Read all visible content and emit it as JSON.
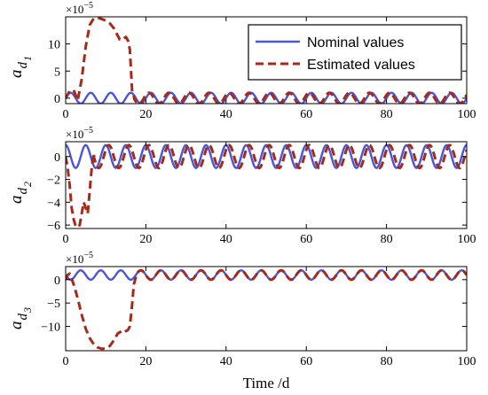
{
  "chart_data": [
    {
      "type": "line",
      "ylabel": {
        "main": "a",
        "sub": "d",
        "subsub": "1"
      },
      "exponent": "×10",
      "exponent_power": "−5",
      "xlim": [
        0,
        100
      ],
      "ylim": [
        -1,
        15
      ],
      "xticks": [
        "0",
        "20",
        "40",
        "60",
        "80",
        "100"
      ],
      "yticks": [
        {
          "value": 0,
          "label": "0"
        },
        {
          "value": 5,
          "label": "5"
        },
        {
          "value": 10,
          "label": "10"
        }
      ],
      "legend": {
        "placement": "top-right",
        "items": [
          "Nominal values",
          "Estimated values"
        ]
      },
      "series": [
        {
          "name": "Nominal values",
          "color": "#4a55d8",
          "style": "solid",
          "model": {
            "amplitude": 1,
            "offset": 0,
            "period": 5,
            "phase_deg": 0,
            "x_start": 0
          }
        },
        {
          "name": "Estimated values",
          "color": "#a52a1a",
          "style": "dashed",
          "x": [
            0,
            1,
            2,
            3,
            4,
            5,
            6,
            7,
            8,
            9,
            10,
            11,
            12,
            13,
            13.5,
            14,
            14.5,
            15,
            15.5,
            16,
            16.3,
            16.6,
            17
          ],
          "y": [
            0,
            1.3,
            1.5,
            -0.4,
            3.5,
            9.5,
            13.5,
            14.7,
            14.8,
            14.6,
            14.3,
            13.8,
            12.9,
            11.5,
            10.8,
            10.7,
            11.0,
            11.3,
            10.7,
            9.0,
            5.0,
            1.0,
            0.5
          ],
          "converged_model": {
            "amplitude": 1,
            "offset": 0,
            "period": 5,
            "phase_deg": 180,
            "x_start": 17
          }
        }
      ]
    },
    {
      "type": "line",
      "ylabel": {
        "main": "a",
        "sub": "d",
        "subsub": "2"
      },
      "exponent": "×10",
      "exponent_power": "−5",
      "xlim": [
        0,
        100
      ],
      "ylim": [
        -6.3,
        1.3
      ],
      "xticks": [
        "0",
        "20",
        "40",
        "60",
        "80",
        "100"
      ],
      "yticks": [
        {
          "value": 0,
          "label": "0"
        },
        {
          "value": -2,
          "label": "−2"
        },
        {
          "value": -4,
          "label": "−4"
        },
        {
          "value": -6,
          "label": "−6"
        }
      ],
      "series": [
        {
          "name": "Nominal values",
          "color": "#4a55d8",
          "style": "solid",
          "model": {
            "amplitude": 1,
            "offset": 0,
            "period": 5,
            "phase_deg": 90,
            "x_start": 0
          }
        },
        {
          "name": "Estimated values",
          "color": "#a52a1a",
          "style": "dashed",
          "x": [
            0,
            0.5,
            1,
            1.5,
            2,
            2.5,
            3,
            3.5,
            4,
            4.5,
            5,
            5.5,
            6,
            6.5,
            7
          ],
          "y": [
            0,
            -1.0,
            -2.5,
            -4.5,
            -5.5,
            -6.1,
            -6.2,
            -6.0,
            -5.0,
            -4.0,
            -4.5,
            -5.0,
            -3.0,
            -1.0,
            0.3
          ],
          "converged_model": {
            "amplitude": 1,
            "offset": 0,
            "period": 5,
            "phase_deg": 180,
            "x_start": 7
          }
        }
      ]
    },
    {
      "type": "line",
      "ylabel": {
        "main": "a",
        "sub": "d",
        "subsub": "3"
      },
      "exponent": "×10",
      "exponent_power": "−5",
      "xlim": [
        0,
        100
      ],
      "ylim": [
        -15.2,
        2.8
      ],
      "xticks": [
        "0",
        "20",
        "40",
        "60",
        "80",
        "100"
      ],
      "yticks": [
        {
          "value": 0,
          "label": "0"
        },
        {
          "value": -5,
          "label": "−5"
        },
        {
          "value": -10,
          "label": "−10"
        }
      ],
      "series": [
        {
          "name": "Nominal values",
          "color": "#4a55d8",
          "style": "solid",
          "model": {
            "amplitude": 1,
            "offset": 1,
            "period": 5,
            "phase_deg": 180,
            "x_start": 0
          }
        },
        {
          "name": "Estimated values",
          "color": "#a52a1a",
          "style": "dashed",
          "x": [
            0,
            0.5,
            1,
            2,
            3,
            4,
            5,
            6,
            7,
            8,
            9,
            10,
            11,
            12,
            13,
            14,
            14.5,
            15,
            15.5,
            16,
            16.5,
            17,
            17.5
          ],
          "y": [
            0,
            1.0,
            1.3,
            -1.0,
            -4.0,
            -7.5,
            -10.5,
            -12.5,
            -13.8,
            -14.5,
            -14.8,
            -14.7,
            -14.2,
            -13.0,
            -11.5,
            -11.0,
            -11.3,
            -11.0,
            -10.8,
            -10.0,
            -6.0,
            -1.0,
            0.5
          ],
          "converged_model": {
            "amplitude": 1,
            "offset": 1,
            "period": 5,
            "phase_deg": 0,
            "x_start": 17.5
          }
        }
      ]
    }
  ],
  "xlabel": "Time /d"
}
